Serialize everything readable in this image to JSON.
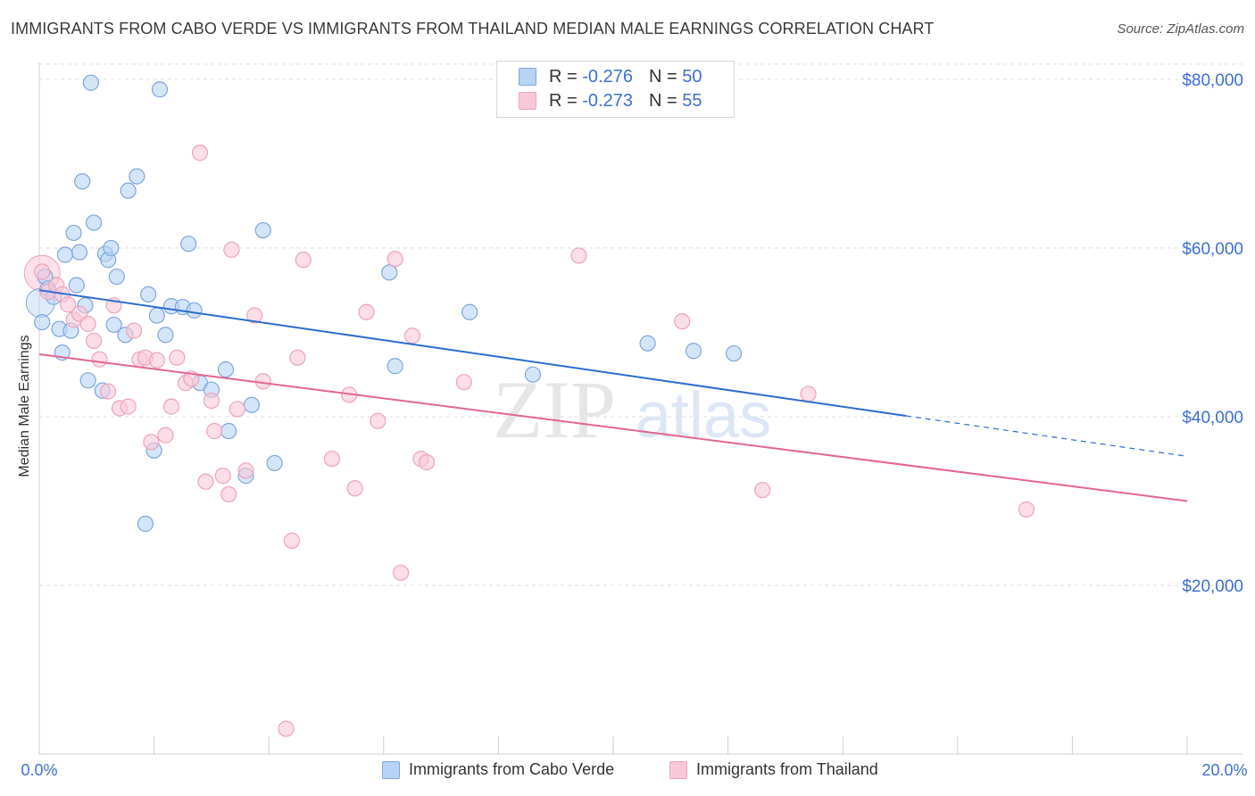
{
  "header": {
    "title": "IMMIGRANTS FROM CABO VERDE VS IMMIGRANTS FROM THAILAND MEDIAN MALE EARNINGS CORRELATION CHART",
    "source": "Source: ZipAtlas.com"
  },
  "watermark": {
    "zip": "ZIP",
    "atlas": "atlas"
  },
  "legend_top": [
    {
      "r_label": "R =",
      "r_value": "-0.276",
      "n_label": "N =",
      "n_value": "50"
    },
    {
      "r_label": "R =",
      "r_value": "-0.273",
      "n_label": "N =",
      "n_value": "55"
    }
  ],
  "legend_bottom": [
    {
      "label": "Immigrants from Cabo Verde"
    },
    {
      "label": "Immigrants from Thailand"
    }
  ],
  "colors": {
    "blue_fill": "#b9d3f5",
    "blue_stroke": "#7fa6dc",
    "blue_line": "#2b6cd1",
    "pink_fill": "#f9c8d8",
    "pink_stroke": "#eda3ba",
    "pink_line": "#e2658f",
    "tick_text": "#3c6fd1",
    "grid": "#dedede"
  },
  "chart_data": {
    "type": "scatter",
    "title": "IMMIGRANTS FROM CABO VERDE VS IMMIGRANTS FROM THAILAND MEDIAN MALE EARNINGS CORRELATION CHART",
    "xlabel": "",
    "ylabel": "Median Male Earnings",
    "xlim": [
      0,
      20
    ],
    "ylim": [
      0,
      82000
    ],
    "x_tick_labels": [
      "0.0%",
      "20.0%"
    ],
    "y_ticks": [
      {
        "value": 20000,
        "label": "$20,000"
      },
      {
        "value": 40000,
        "label": "$40,000"
      },
      {
        "value": 60000,
        "label": "$60,000"
      },
      {
        "value": 80000,
        "label": "$80,000"
      }
    ],
    "series": [
      {
        "name": "Immigrants from Cabo Verde",
        "color": "blue",
        "points": [
          [
            0.05,
            51200
          ],
          [
            0.1,
            56600
          ],
          [
            0.15,
            55200
          ],
          [
            0.25,
            54200
          ],
          [
            0.35,
            50400
          ],
          [
            0.4,
            47600
          ],
          [
            0.45,
            59200
          ],
          [
            0.55,
            50200
          ],
          [
            0.6,
            61800
          ],
          [
            0.65,
            55600
          ],
          [
            0.7,
            59500
          ],
          [
            0.75,
            67900
          ],
          [
            0.8,
            53200
          ],
          [
            0.85,
            44300
          ],
          [
            0.9,
            79600
          ],
          [
            0.95,
            63000
          ],
          [
            1.1,
            43100
          ],
          [
            1.15,
            59300
          ],
          [
            1.2,
            58600
          ],
          [
            1.25,
            60000
          ],
          [
            1.3,
            50900
          ],
          [
            1.35,
            56600
          ],
          [
            1.5,
            49700
          ],
          [
            1.55,
            66800
          ],
          [
            1.7,
            68500
          ],
          [
            1.9,
            54500
          ],
          [
            2.0,
            36000
          ],
          [
            2.05,
            52000
          ],
          [
            2.1,
            78800
          ],
          [
            2.2,
            49700
          ],
          [
            2.3,
            53100
          ],
          [
            2.5,
            53000
          ],
          [
            2.7,
            52600
          ],
          [
            2.8,
            44000
          ],
          [
            3.0,
            43200
          ],
          [
            3.25,
            45600
          ],
          [
            3.3,
            38300
          ],
          [
            3.6,
            33000
          ],
          [
            3.7,
            41400
          ],
          [
            3.9,
            62100
          ],
          [
            4.1,
            34500
          ],
          [
            6.1,
            57100
          ],
          [
            6.2,
            46000
          ],
          [
            7.5,
            52400
          ],
          [
            8.6,
            45000
          ],
          [
            10.6,
            48700
          ],
          [
            11.4,
            47800
          ],
          [
            12.1,
            47500
          ],
          [
            1.85,
            27300
          ],
          [
            2.6,
            60500
          ]
        ]
      },
      {
        "name": "Immigrants from Thailand",
        "color": "pink",
        "points": [
          [
            0.05,
            57200
          ],
          [
            0.15,
            54800
          ],
          [
            0.3,
            55600
          ],
          [
            0.4,
            54500
          ],
          [
            0.5,
            53300
          ],
          [
            0.6,
            51500
          ],
          [
            0.7,
            52200
          ],
          [
            0.85,
            51000
          ],
          [
            0.95,
            49000
          ],
          [
            1.05,
            46800
          ],
          [
            1.2,
            43000
          ],
          [
            1.3,
            53200
          ],
          [
            1.4,
            41000
          ],
          [
            1.55,
            41200
          ],
          [
            1.65,
            50200
          ],
          [
            1.75,
            46800
          ],
          [
            1.85,
            47000
          ],
          [
            1.95,
            37000
          ],
          [
            2.05,
            46700
          ],
          [
            2.2,
            37800
          ],
          [
            2.3,
            41200
          ],
          [
            2.4,
            47000
          ],
          [
            2.55,
            44000
          ],
          [
            2.65,
            44500
          ],
          [
            2.8,
            71300
          ],
          [
            2.9,
            32300
          ],
          [
            3.0,
            41900
          ],
          [
            3.05,
            38300
          ],
          [
            3.2,
            33000
          ],
          [
            3.3,
            30800
          ],
          [
            3.35,
            59800
          ],
          [
            3.45,
            40900
          ],
          [
            3.6,
            33600
          ],
          [
            3.75,
            52000
          ],
          [
            3.9,
            44200
          ],
          [
            4.4,
            25300
          ],
          [
            4.5,
            47000
          ],
          [
            4.6,
            58600
          ],
          [
            5.1,
            35000
          ],
          [
            5.4,
            42600
          ],
          [
            5.5,
            31500
          ],
          [
            5.7,
            52400
          ],
          [
            5.9,
            39500
          ],
          [
            6.2,
            58700
          ],
          [
            6.3,
            21500
          ],
          [
            6.5,
            49600
          ],
          [
            6.65,
            35000
          ],
          [
            6.75,
            34600
          ],
          [
            7.4,
            44100
          ],
          [
            9.4,
            59100
          ],
          [
            11.2,
            51300
          ],
          [
            12.6,
            31300
          ],
          [
            13.4,
            42700
          ],
          [
            17.2,
            29000
          ],
          [
            4.3,
            3000
          ]
        ]
      }
    ],
    "trendlines": [
      {
        "series": "Immigrants from Cabo Verde",
        "x_start": 0,
        "y_start": 55000,
        "x_end": 15.1,
        "y_end": 40100,
        "dashed_to_x": 20,
        "dashed_to_y": 35300
      },
      {
        "series": "Immigrants from Thailand",
        "x_start": 0,
        "y_start": 47400,
        "x_end": 20,
        "y_end": 30000
      }
    ]
  }
}
